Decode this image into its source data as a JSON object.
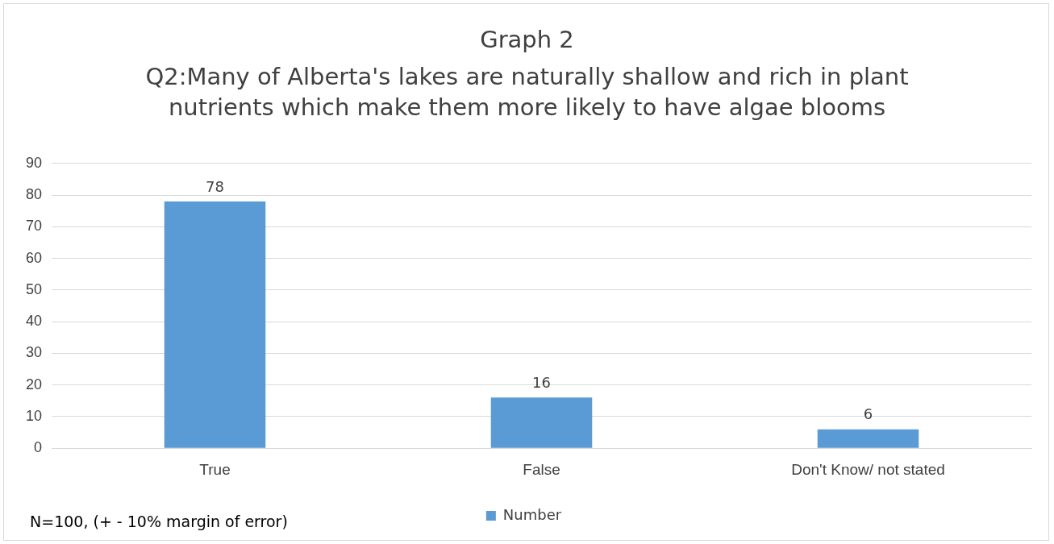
{
  "chart_data": {
    "type": "bar",
    "title": "Graph 2",
    "subtitle": "Q2:Many of Alberta's lakes are naturally shallow and rich in plant nutrients which make them more likely to have algae blooms",
    "categories": [
      "True",
      "False",
      "Don't Know/ not stated"
    ],
    "series": [
      {
        "name": "Number",
        "color": "#5b9bd5",
        "values": [
          78,
          16,
          6
        ]
      }
    ],
    "ylim": [
      0,
      90
    ],
    "yticks": [
      0,
      10,
      20,
      30,
      40,
      50,
      60,
      70,
      80,
      90
    ],
    "grid": "y",
    "legend": "bottom",
    "data_labels": true,
    "annotations": [
      "N=100, (+ - 10% margin of error)"
    ]
  }
}
